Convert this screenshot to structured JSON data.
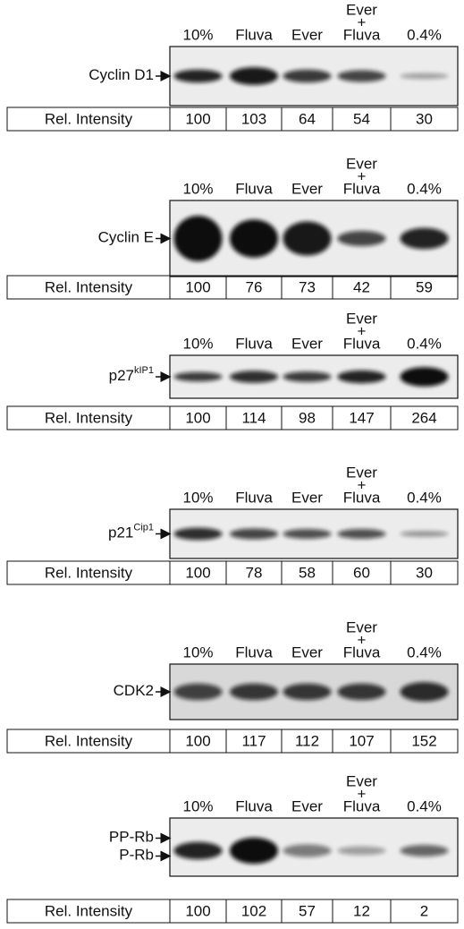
{
  "panels": [
    {
      "columns": [
        [
          "10%"
        ],
        [
          "Fluva"
        ],
        [
          "Ever"
        ],
        [
          "Ever",
          "+",
          "Fluva"
        ],
        [
          "0.4%"
        ]
      ],
      "labels": [
        {
          "text": "Cyclin D1"
        }
      ],
      "row_label": "Rel. Intensity",
      "values": [
        "100",
        "103",
        "64",
        "54",
        "30"
      ]
    },
    {
      "columns": [
        [
          "10%"
        ],
        [
          "Fluva"
        ],
        [
          "Ever"
        ],
        [
          "Ever",
          "+",
          "Fluva"
        ],
        [
          "0.4%"
        ]
      ],
      "labels": [
        {
          "text": "Cyclin E"
        }
      ],
      "row_label": "Rel. Intensity",
      "values": [
        "100",
        "76",
        "73",
        "42",
        "59"
      ]
    },
    {
      "columns": [
        [
          "10%"
        ],
        [
          "Fluva"
        ],
        [
          "Ever"
        ],
        [
          "Ever",
          "+",
          "Fluva"
        ],
        [
          "0.4%"
        ]
      ],
      "labels": [
        {
          "text": "p27",
          "sup": "kIP1"
        }
      ],
      "row_label": "Rel. Intensity",
      "values": [
        "100",
        "114",
        "98",
        "147",
        "264"
      ]
    },
    {
      "columns": [
        [
          "10%"
        ],
        [
          "Fluva"
        ],
        [
          "Ever"
        ],
        [
          "Ever",
          "+",
          "Fluva"
        ],
        [
          "0.4%"
        ]
      ],
      "labels": [
        {
          "text": "p21",
          "sup": "Cip1"
        }
      ],
      "row_label": "Rel. Intensity",
      "values": [
        "100",
        "78",
        "58",
        "60",
        "30"
      ]
    },
    {
      "columns": [
        [
          "10%"
        ],
        [
          "Fluva"
        ],
        [
          "Ever"
        ],
        [
          "Ever",
          "+",
          "Fluva"
        ],
        [
          "0.4%"
        ]
      ],
      "labels": [
        {
          "text": "CDK2"
        }
      ],
      "row_label": "Rel. Intensity",
      "values": [
        "100",
        "117",
        "112",
        "107",
        "152"
      ]
    },
    {
      "columns": [
        [
          "10%"
        ],
        [
          "Fluva"
        ],
        [
          "Ever"
        ],
        [
          "Ever",
          "+",
          "Fluva"
        ],
        [
          "0.4%"
        ]
      ],
      "labels": [
        {
          "text": "PP-Rb"
        },
        {
          "text": "P-Rb"
        }
      ],
      "row_label": "Rel. Intensity",
      "values": [
        "100",
        "102",
        "57",
        "12",
        "2"
      ]
    }
  ]
}
